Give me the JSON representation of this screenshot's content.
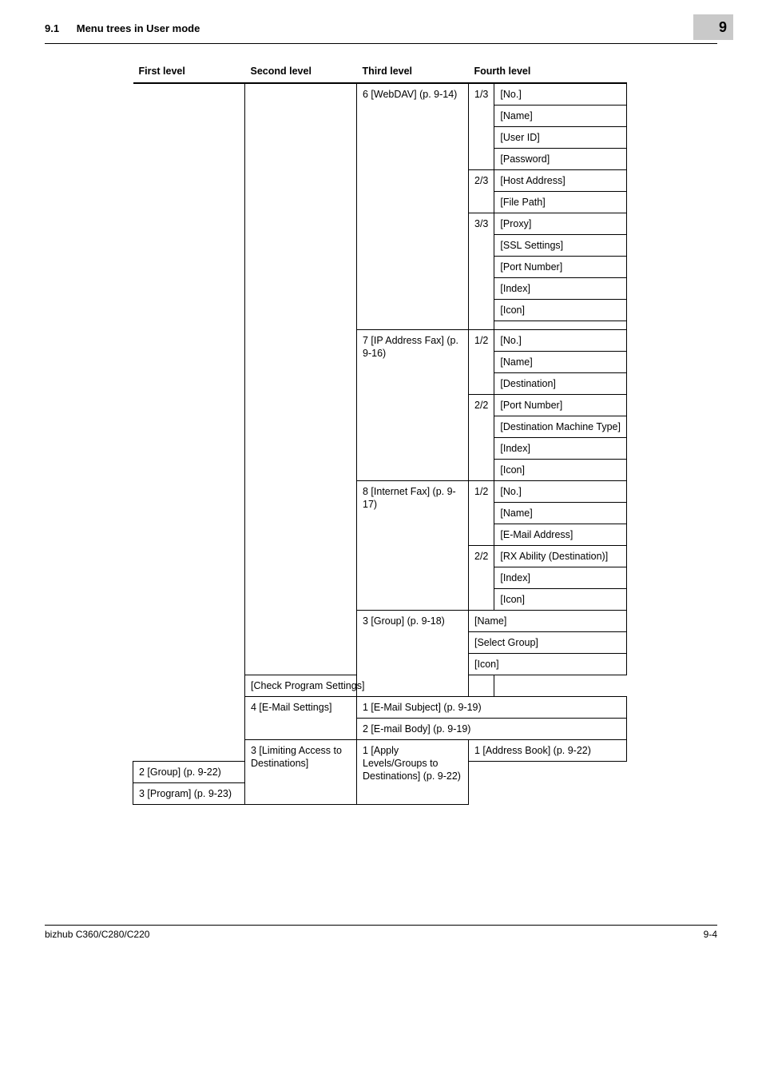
{
  "header": {
    "section_number": "9.1",
    "section_title": "Menu trees in User mode",
    "chapter_badge": "9"
  },
  "columns": {
    "first": "First level",
    "second": "Second level",
    "third": "Third level",
    "fourth": "Fourth level"
  },
  "third": {
    "webdav": "6 [WebDAV] (p. 9-14)",
    "ipfax": "7 [IP Address Fax] (p. 9-16)",
    "ifax": "8 [Internet Fax] (p. 9-17)",
    "group_name": "[Name]",
    "group_select": "[Select Group]",
    "group_icon": "[Icon]",
    "group_check": "[Check Program Settings]",
    "email_subject": "1 [E-Mail Subject] (p. 9-19)",
    "email_body": "2 [E-mail Body] (p. 9-19)",
    "limit_addr": "1 [Address Book] (p. 9-22)",
    "limit_group": "2 [Group] (p. 9-22)",
    "limit_program": "3 [Program] (p. 9-23)"
  },
  "second": {
    "group": "3 [Group] (p. 9-18)",
    "email": "4 [E-Mail Settings]",
    "apply": "1 [Apply Levels/Groups to Destinations] (p. 9-22)"
  },
  "first": {
    "limiting": "3 [Limiting Access to Destinations]"
  },
  "pages": {
    "p13": "1/3",
    "p23": "2/3",
    "p33": "3/3",
    "p12": "1/2",
    "p22": "2/2"
  },
  "items": {
    "no": "[No.]",
    "name": "[Name]",
    "userid": "[User ID]",
    "password": "[Password]",
    "hostaddr": "[Host Address]",
    "filepath": "[File Path]",
    "proxy": "[Proxy]",
    "ssl": "[SSL Settings]",
    "portnum": "[Port Number]",
    "index": "[Index]",
    "icon": "[Icon]",
    "destination": "[Destination]",
    "destmachine": "[Destination Machine Type]",
    "emailaddr": "[E-Mail Address]",
    "rxability": "[RX Ability (Destination)]"
  },
  "footer": {
    "model": "bizhub C360/C280/C220",
    "pagenum": "9-4"
  }
}
